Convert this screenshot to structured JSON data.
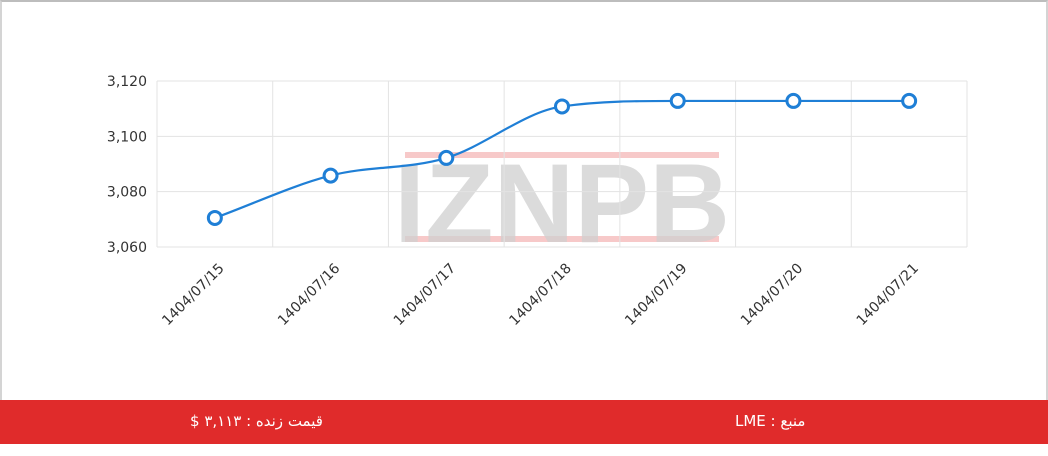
{
  "chart_data": {
    "type": "line",
    "x": [
      "1404/07/15",
      "1404/07/16",
      "1404/07/17",
      "1404/07/18",
      "1404/07/19",
      "1404/07/20",
      "1404/07/21"
    ],
    "series": [
      {
        "values": [
          3070.5,
          3085.8,
          3092.2,
          3110.8,
          3112.8,
          3112.8,
          3112.8
        ],
        "color": "#1f7fd6"
      }
    ],
    "y_ticks": [
      "3,060",
      "3,080",
      "3,100",
      "3,120"
    ],
    "ylim": [
      3060,
      3120
    ],
    "grid": true,
    "title": "",
    "xlabel": "",
    "ylabel": "",
    "watermark": "IZNPB"
  },
  "footer": {
    "live_price": "قیمت زنده : ۳,۱۱۳ $",
    "source": "منبع : LME"
  },
  "colors": {
    "accent": "#e02b2b",
    "line": "#1f7fd6"
  }
}
